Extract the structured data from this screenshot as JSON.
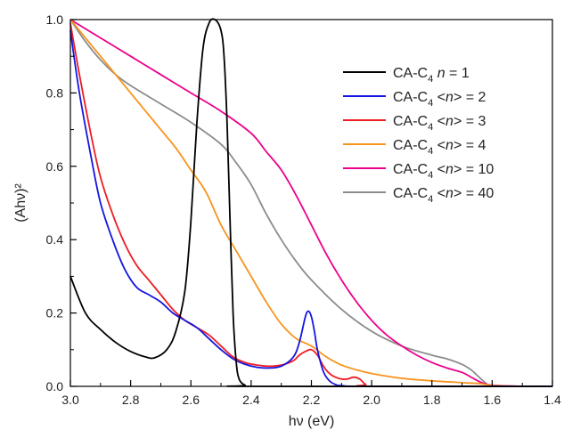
{
  "chart_data": {
    "type": "line",
    "xlabel": "hν (eV)",
    "ylabel": "(Ahν)²",
    "xlim": [
      3.0,
      1.4
    ],
    "ylim": [
      0.0,
      1.0
    ],
    "x_reversed": true,
    "grid": false,
    "legend_placement": "top-right",
    "x_ticks": [
      "3.0",
      "2.8",
      "2.6",
      "2.4",
      "2.2",
      "2.0",
      "1.8",
      "1.6",
      "1.4"
    ],
    "y_ticks": [
      "0.0",
      "0.2",
      "0.4",
      "0.6",
      "0.8",
      "1.0"
    ],
    "series": [
      {
        "name": "CA-C4 n = 1",
        "legend": {
          "base": "CA-C",
          "sub": "4",
          "pre": " ",
          "var": "n",
          "post": " = 1"
        },
        "color": "#000000",
        "x": [
          3.0,
          2.95,
          2.9,
          2.85,
          2.8,
          2.75,
          2.72,
          2.68,
          2.65,
          2.62,
          2.6,
          2.58,
          2.56,
          2.54,
          2.52,
          2.5,
          2.49,
          2.48,
          2.47,
          2.46,
          2.45,
          2.44,
          2.42,
          2.4,
          1.4
        ],
        "y": [
          0.3,
          0.2,
          0.155,
          0.12,
          0.095,
          0.08,
          0.078,
          0.1,
          0.15,
          0.26,
          0.45,
          0.72,
          0.92,
          0.99,
          1.0,
          0.97,
          0.9,
          0.72,
          0.45,
          0.2,
          0.07,
          0.02,
          0.003,
          0.0,
          0.0
        ]
      },
      {
        "name": "CA-C4 <n> = 2",
        "legend": {
          "base": "CA-C",
          "sub": "4",
          "pre": " <",
          "var": "n",
          "post": "> = 2"
        },
        "color": "#1515e0",
        "x": [
          3.0,
          2.97,
          2.93,
          2.9,
          2.86,
          2.82,
          2.78,
          2.74,
          2.7,
          2.66,
          2.62,
          2.58,
          2.54,
          2.5,
          2.46,
          2.42,
          2.38,
          2.34,
          2.3,
          2.26,
          2.24,
          2.22,
          2.21,
          2.2,
          2.19,
          2.18,
          2.16,
          2.14,
          2.12,
          2.1,
          2.0,
          1.4
        ],
        "y": [
          0.97,
          0.8,
          0.62,
          0.5,
          0.4,
          0.32,
          0.27,
          0.25,
          0.23,
          0.2,
          0.18,
          0.16,
          0.13,
          0.1,
          0.075,
          0.06,
          0.052,
          0.05,
          0.055,
          0.08,
          0.12,
          0.19,
          0.205,
          0.19,
          0.15,
          0.1,
          0.04,
          0.015,
          0.005,
          0.002,
          0.0,
          0.0
        ]
      },
      {
        "name": "CA-C4 <n> = 3",
        "legend": {
          "base": "CA-C",
          "sub": "4",
          "pre": " <",
          "var": "n",
          "post": "> = 3"
        },
        "color": "#ee1c24",
        "x": [
          3.0,
          2.97,
          2.93,
          2.9,
          2.86,
          2.82,
          2.78,
          2.74,
          2.7,
          2.66,
          2.62,
          2.58,
          2.54,
          2.5,
          2.46,
          2.42,
          2.38,
          2.34,
          2.3,
          2.26,
          2.24,
          2.22,
          2.2,
          2.18,
          2.16,
          2.14,
          2.12,
          2.1,
          2.08,
          2.06,
          2.04,
          2.02,
          2.0,
          1.4
        ],
        "y": [
          0.99,
          0.85,
          0.68,
          0.57,
          0.47,
          0.39,
          0.33,
          0.29,
          0.25,
          0.21,
          0.18,
          0.16,
          0.14,
          0.11,
          0.08,
          0.065,
          0.058,
          0.055,
          0.058,
          0.07,
          0.085,
          0.095,
          0.1,
          0.085,
          0.055,
          0.035,
          0.025,
          0.02,
          0.02,
          0.025,
          0.02,
          0.005,
          0.0,
          0.0
        ]
      },
      {
        "name": "CA-C4 <n> = 4",
        "legend": {
          "base": "CA-C",
          "sub": "4",
          "pre": " <",
          "var": "n",
          "post": "> = 4"
        },
        "color": "#f7941d",
        "x": [
          3.0,
          2.9,
          2.8,
          2.7,
          2.65,
          2.6,
          2.55,
          2.5,
          2.45,
          2.4,
          2.35,
          2.3,
          2.25,
          2.2,
          2.15,
          2.1,
          2.05,
          2.0,
          1.9,
          1.8,
          1.7,
          1.65,
          1.62,
          1.6,
          1.5,
          1.4
        ],
        "y": [
          1.0,
          0.9,
          0.8,
          0.7,
          0.65,
          0.59,
          0.53,
          0.44,
          0.37,
          0.3,
          0.23,
          0.17,
          0.13,
          0.11,
          0.08,
          0.058,
          0.045,
          0.035,
          0.022,
          0.015,
          0.01,
          0.008,
          0.005,
          0.002,
          0.0,
          0.0
        ]
      },
      {
        "name": "CA-C4 <n> = 10",
        "legend": {
          "base": "CA-C",
          "sub": "4",
          "pre": " <",
          "var": "n",
          "post": "> = 10"
        },
        "color": "#ec008c",
        "x": [
          3.0,
          2.9,
          2.8,
          2.7,
          2.6,
          2.5,
          2.4,
          2.35,
          2.3,
          2.25,
          2.2,
          2.15,
          2.1,
          2.05,
          2.0,
          1.95,
          1.9,
          1.85,
          1.8,
          1.75,
          1.7,
          1.67,
          1.64,
          1.62,
          1.6,
          1.5,
          1.4
        ],
        "y": [
          1.0,
          0.95,
          0.9,
          0.85,
          0.8,
          0.75,
          0.69,
          0.64,
          0.59,
          0.52,
          0.44,
          0.36,
          0.29,
          0.23,
          0.18,
          0.14,
          0.11,
          0.085,
          0.065,
          0.05,
          0.038,
          0.025,
          0.012,
          0.006,
          0.003,
          0.0,
          0.0
        ]
      },
      {
        "name": "CA-C4 <n> = 40",
        "legend": {
          "base": "CA-C",
          "sub": "4",
          "pre": " <",
          "var": "n",
          "post": "> = 40"
        },
        "color": "#8c8c8c",
        "x": [
          3.0,
          2.95,
          2.9,
          2.85,
          2.8,
          2.7,
          2.6,
          2.5,
          2.45,
          2.4,
          2.35,
          2.3,
          2.25,
          2.2,
          2.1,
          2.0,
          1.9,
          1.8,
          1.75,
          1.7,
          1.67,
          1.65,
          1.63,
          1.62,
          1.6,
          1.5,
          1.4
        ],
        "y": [
          1.0,
          0.94,
          0.89,
          0.85,
          0.82,
          0.77,
          0.72,
          0.66,
          0.61,
          0.55,
          0.47,
          0.4,
          0.34,
          0.29,
          0.21,
          0.15,
          0.11,
          0.085,
          0.075,
          0.06,
          0.045,
          0.03,
          0.015,
          0.008,
          0.003,
          0.0,
          0.0
        ]
      }
    ]
  }
}
